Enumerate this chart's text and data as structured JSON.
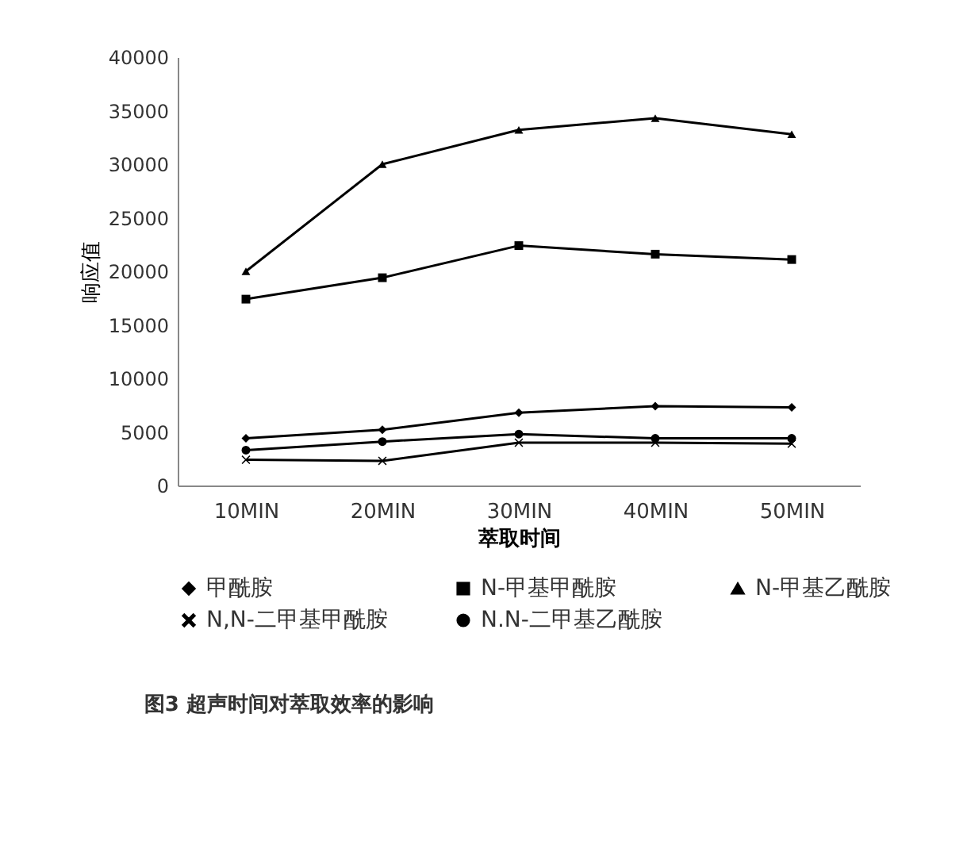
{
  "chart_data": {
    "type": "line",
    "title": "图3 超声时间对萃取效率的影响",
    "xlabel": "萃取时间",
    "ylabel": "响应值",
    "categories": [
      "10MIN",
      "20MIN",
      "30MIN",
      "40MIN",
      "50MIN"
    ],
    "ylim": [
      0,
      40000
    ],
    "yticks": [
      0,
      5000,
      10000,
      15000,
      20000,
      25000,
      30000,
      35000,
      40000
    ],
    "grid": false,
    "legend": "bottom",
    "series": [
      {
        "name": "甲酰胺",
        "color": "#000000",
        "marker": "diamond",
        "values": [
          4400,
          5200,
          6800,
          7400,
          7300
        ]
      },
      {
        "name": "N-甲基甲酰胺",
        "color": "#000000",
        "marker": "square",
        "values": [
          17400,
          19400,
          22400,
          21600,
          21100
        ]
      },
      {
        "name": "N-甲基乙酰胺",
        "color": "#000000",
        "marker": "triangle",
        "values": [
          20000,
          30000,
          33200,
          34300,
          32800
        ]
      },
      {
        "name": "N,N-二甲基甲酰胺",
        "color": "#000000",
        "marker": "cross",
        "values": [
          2400,
          2300,
          4000,
          4000,
          3900
        ]
      },
      {
        "name": "N.N-二甲基乙酰胺",
        "color": "#000000",
        "marker": "circle",
        "values": [
          3300,
          4100,
          4800,
          4400,
          4400
        ]
      }
    ]
  }
}
